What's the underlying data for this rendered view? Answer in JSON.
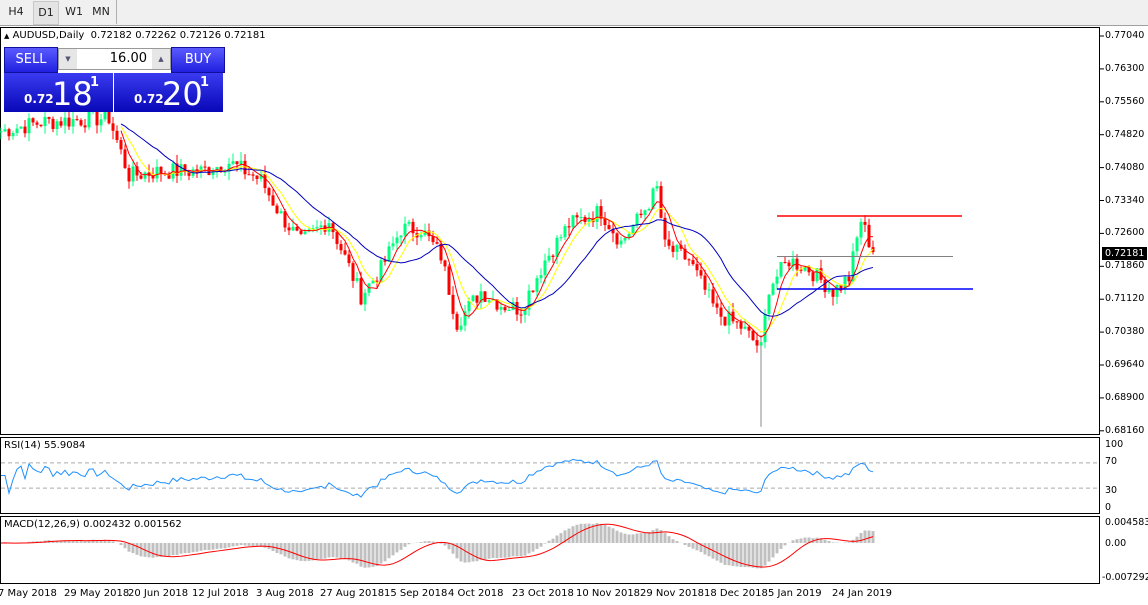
{
  "tabs": [
    {
      "label": "H4"
    },
    {
      "label": "D1",
      "active": true
    },
    {
      "label": "W1"
    },
    {
      "label": "MN"
    }
  ],
  "chart_header": {
    "symbol": "AUDUSD,Daily",
    "ohlc": "0.72182 0.72262 0.72126 0.72181"
  },
  "trade_panel": {
    "sell_label": "SELL",
    "buy_label": "BUY",
    "lot": "16.00",
    "sell_prefix": "0.72",
    "sell_big": "18",
    "sell_pip": "1",
    "buy_prefix": "0.72",
    "buy_big": "20",
    "buy_pip": "1"
  },
  "price_axis": [
    "0.77040",
    "0.76300",
    "0.75560",
    "0.74820",
    "0.74080",
    "0.73340",
    "0.72600",
    "0.71860",
    "0.71120",
    "0.70380",
    "0.69640",
    "0.68900",
    "0.68160"
  ],
  "current_price": "0.72181",
  "rsi": {
    "label": "RSI(14) 55.9084",
    "axis": [
      "100",
      "70",
      "30",
      "0"
    ]
  },
  "macd": {
    "label": "MACD(12,26,9) 0.002432 0.001562",
    "axis": [
      "0.004583",
      "0.00",
      "-0.007292"
    ]
  },
  "date_axis": [
    "7 May 2018",
    "29 May 2018",
    "20 Jun 2018",
    "12 Jul 2018",
    "3 Aug 2018",
    "27 Aug 2018",
    "15 Sep 2018",
    "4 Oct 2018",
    "23 Oct 2018",
    "10 Nov 2018",
    "29 Nov 2018",
    "18 Dec 2018",
    "5 Jan 2019",
    "24 Jan 2019"
  ],
  "colors": {
    "bull": "#00ff80",
    "bear": "#ff0000",
    "ma_fast": "#ff0000",
    "ma_mid": "#ffff00",
    "ma_slow": "#0000c0",
    "rsi": "#1e90ff",
    "macd_hist": "#c0c0c0",
    "macd_signal": "#ff0000"
  },
  "chart_data": {
    "type": "candlestick",
    "ylim": [
      0.6816,
      0.7704
    ],
    "close_keypoints": [
      [
        0,
        0.749
      ],
      [
        10,
        0.751
      ],
      [
        27,
        0.752
      ],
      [
        32,
        0.739
      ],
      [
        40,
        0.74
      ],
      [
        50,
        0.74
      ],
      [
        57,
        0.742
      ],
      [
        65,
        0.738
      ],
      [
        70,
        0.73
      ],
      [
        75,
        0.724
      ],
      [
        82,
        0.729
      ],
      [
        90,
        0.712
      ],
      [
        95,
        0.718
      ],
      [
        100,
        0.727
      ],
      [
        105,
        0.727
      ],
      [
        110,
        0.721
      ],
      [
        114,
        0.706
      ],
      [
        120,
        0.713
      ],
      [
        125,
        0.71
      ],
      [
        130,
        0.709
      ],
      [
        136,
        0.72
      ],
      [
        142,
        0.728
      ],
      [
        150,
        0.731
      ],
      [
        155,
        0.724
      ],
      [
        160,
        0.73
      ],
      [
        164,
        0.736
      ],
      [
        166,
        0.723
      ],
      [
        172,
        0.72
      ],
      [
        179,
        0.708
      ],
      [
        185,
        0.705
      ],
      [
        190,
        0.7
      ],
      [
        192,
        0.714
      ],
      [
        197,
        0.72
      ],
      [
        202,
        0.718
      ],
      [
        208,
        0.713
      ],
      [
        212,
        0.716
      ],
      [
        215,
        0.729
      ],
      [
        218,
        0.7218
      ]
    ],
    "levels": [
      {
        "price": 0.7299,
        "color": "#ff0000"
      },
      {
        "price": 0.7208,
        "color": "#808080"
      },
      {
        "price": 0.7135,
        "color": "#0000ff"
      }
    ]
  }
}
